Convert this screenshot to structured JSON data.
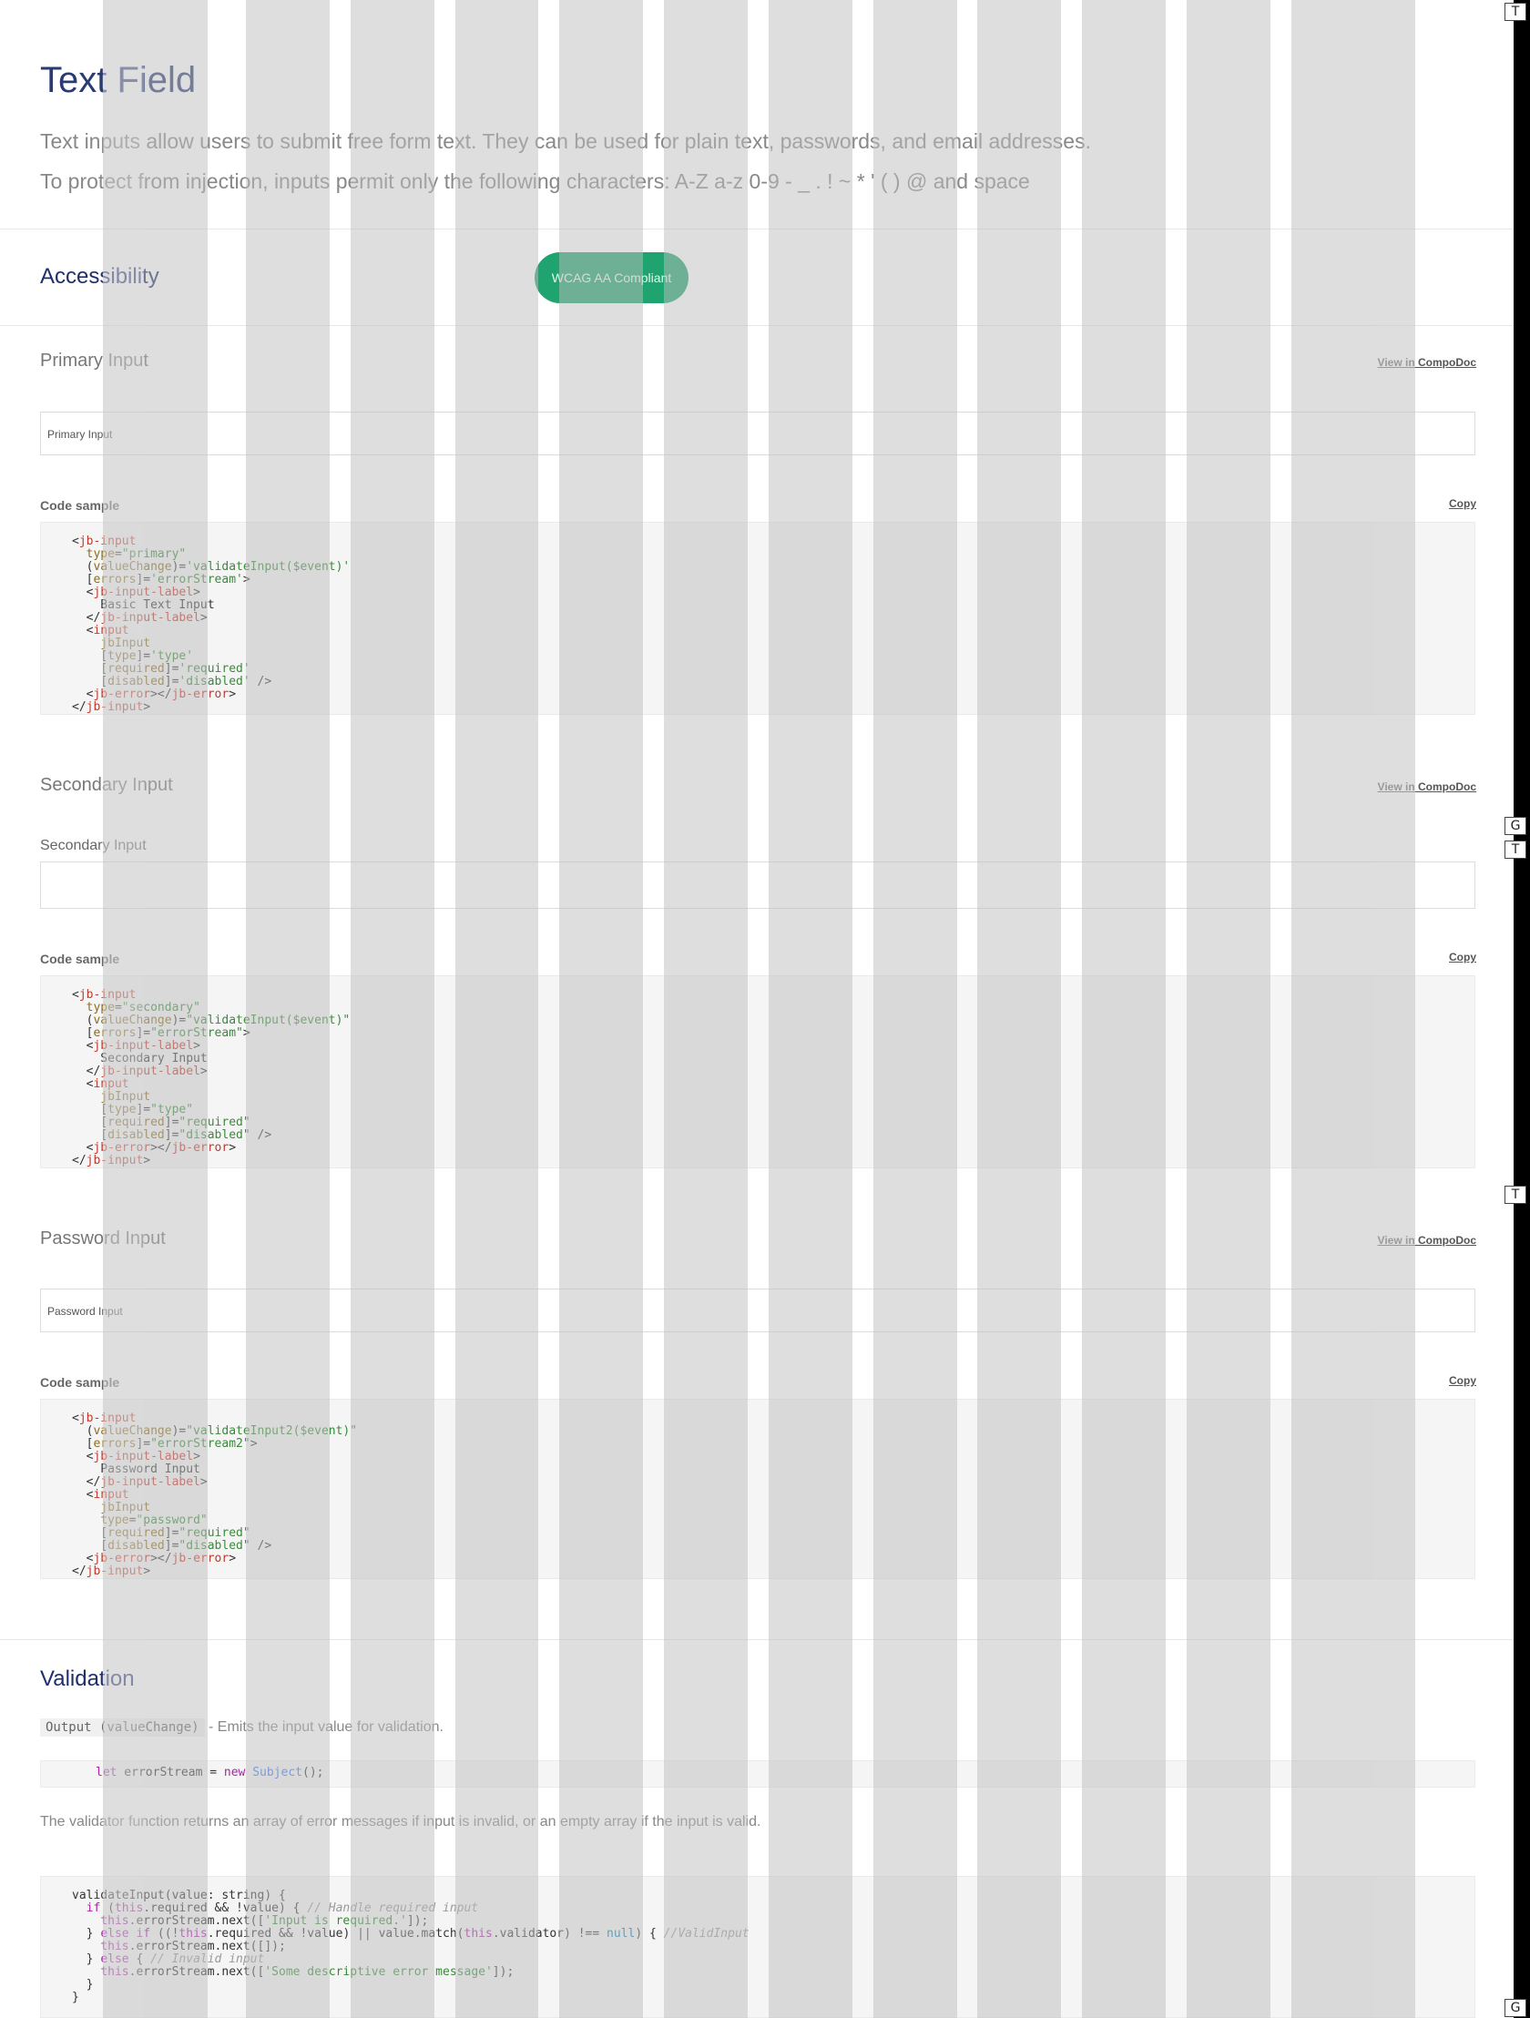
{
  "header": {
    "title": "Text Field",
    "lead1": "Text inputs allow users to submit free form text. They can be used for plain text, passwords, and email addresses.",
    "lead2": "To protect from injection, inputs permit only the following characters: A-Z a-z 0-9 - _ . ! ~ * ' ( ) @ and space"
  },
  "accessibility": {
    "title": "Accessibility",
    "badge": "WCAG AA Compliant",
    "badge_color": "#1fa36f"
  },
  "sections": {
    "primary": {
      "title": "Primary Input",
      "compodoc": "View in CompoDoc",
      "input_placeholder": "Primary Input",
      "code_label": "Code sample",
      "copy": "Copy"
    },
    "secondary": {
      "title": "Secondary Input",
      "compodoc": "View in CompoDoc",
      "input_label": "Secondary Input",
      "code_label": "Code sample",
      "copy": "Copy"
    },
    "password": {
      "title": "Password Input",
      "compodoc": "View in CompoDoc",
      "input_placeholder": "Password Input",
      "code_label": "Code sample",
      "copy": "Copy"
    }
  },
  "validation": {
    "title": "Validation",
    "output_code": "Output (valueChange)",
    "output_desc": " - Emits the input value for validation.",
    "para": "The validator function returns an array of error messages if input is invalid, or an empty array if the input is valid."
  },
  "side_tags": [
    "T",
    "G",
    "T",
    "T",
    "G"
  ],
  "colors": {
    "title": "#2a3a73",
    "accent": "#1fa36f"
  }
}
